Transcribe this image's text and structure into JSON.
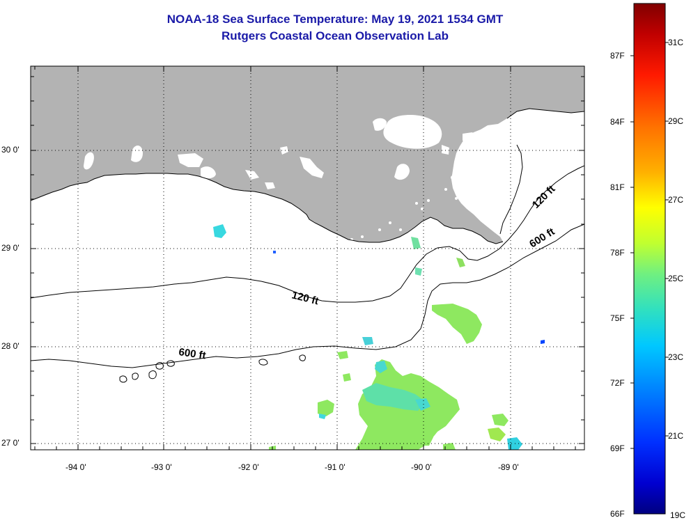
{
  "title": {
    "line1": "NOAA-18 Sea Surface Temperature:  May 19, 2021 1534 GMT",
    "line2": "Rutgers Coastal Ocean Observation Lab"
  },
  "axes": {
    "lat_labels": [
      "30 0'",
      "29 0'",
      "28 0'",
      "27 0'"
    ],
    "lon_labels": [
      "-94 0'",
      "-93 0'",
      "-92 0'",
      "-91 0'",
      "-90 0'",
      "-89 0'"
    ]
  },
  "contours": {
    "label_120_west": "120 ft",
    "label_120_east": "120 ft",
    "label_600_west": "600 ft",
    "label_600_east": "600 ft"
  },
  "colorbar": {
    "fahrenheit_labels": [
      "87F",
      "84F",
      "81F",
      "78F",
      "75F",
      "72F",
      "69F",
      "66F"
    ],
    "celsius_labels": [
      "31C",
      "29C",
      "27C",
      "25C",
      "23C",
      "21C",
      "19C"
    ],
    "colors": [
      "#800000",
      "#d00000",
      "#ff2000",
      "#ff6a00",
      "#ffa800",
      "#ffe000",
      "#d8ff20",
      "#90ff60",
      "#50f0a0",
      "#20e0e0",
      "#00b8ff",
      "#0070ff",
      "#0020ff",
      "#0000c0",
      "#000080"
    ]
  },
  "colors": {
    "land": "#b3b3b3",
    "ocean": "#ffffff",
    "title": "#1a1aa8",
    "sst_green": "#8ee860",
    "sst_cyan": "#40e0d0"
  }
}
